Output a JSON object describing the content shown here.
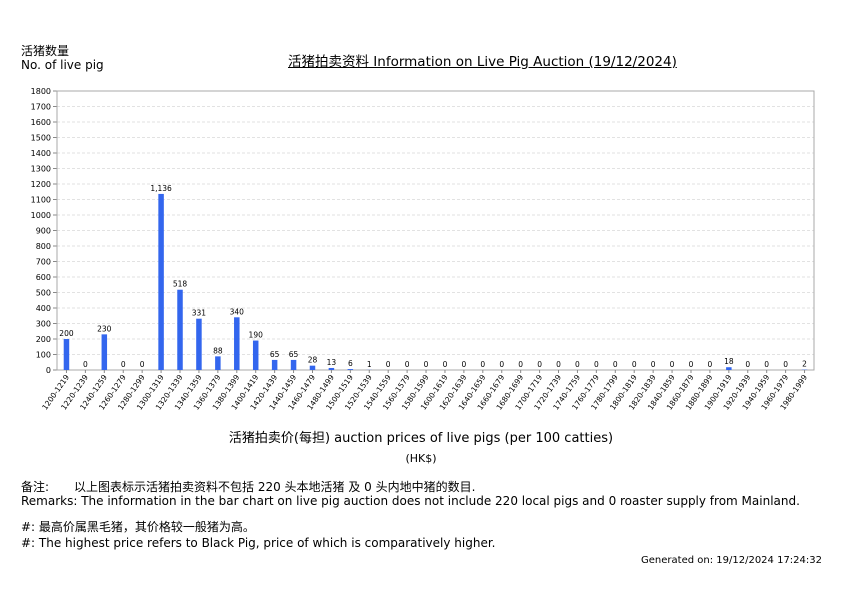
{
  "header": {
    "y_axis_label_cn": "活猪数量",
    "y_axis_label_en": "No. of live pig",
    "title": "活猪拍卖资料 Information on Live Pig Auction (19/12/2024)"
  },
  "chart_data": {
    "type": "bar",
    "title": "活猪拍卖资料 Information on Live Pig Auction (19/12/2024)",
    "xlabel": "活猪拍卖价(每担) auction prices of live pigs (per 100 catties)",
    "xunit": "(HK$)",
    "ylabel": "活猪数量 No. of live pig",
    "ylim": [
      0,
      1800
    ],
    "yticks": [
      0,
      100,
      200,
      300,
      400,
      500,
      600,
      700,
      800,
      900,
      1000,
      1100,
      1200,
      1300,
      1400,
      1500,
      1600,
      1700,
      1800
    ],
    "ytick_labels": [
      "0",
      "100",
      "200",
      "300",
      "400",
      "500",
      "600",
      "700",
      "800",
      "900",
      "1000",
      "1100",
      "1200",
      "1300",
      "1400",
      "1500",
      "1600",
      "1700",
      "1800"
    ],
    "grid": true,
    "bar_color": "#3366ee",
    "categories": [
      "1200-1219",
      "1220-1239",
      "1240-1259",
      "1260-1279",
      "1280-1299",
      "1300-1319",
      "1320-1339",
      "1340-1359",
      "1360-1379",
      "1380-1399",
      "1400-1419",
      "1420-1439",
      "1440-1459",
      "1460-1479",
      "1480-1499",
      "1500-1519",
      "1520-1539",
      "1540-1559",
      "1560-1579",
      "1580-1599",
      "1600-1619",
      "1620-1639",
      "1640-1659",
      "1660-1679",
      "1680-1699",
      "1700-1719",
      "1720-1739",
      "1740-1759",
      "1760-1779",
      "1780-1799",
      "1800-1819",
      "1820-1839",
      "1840-1859",
      "1860-1879",
      "1880-1899",
      "1900-1919",
      "1920-1939",
      "1940-1959",
      "1960-1979",
      "1980-1999"
    ],
    "values": [
      200,
      0,
      230,
      0,
      0,
      1136,
      518,
      331,
      88,
      340,
      190,
      65,
      65,
      28,
      13,
      6,
      1,
      0,
      0,
      0,
      0,
      0,
      0,
      0,
      0,
      0,
      0,
      0,
      0,
      0,
      0,
      0,
      0,
      0,
      0,
      18,
      0,
      0,
      0,
      2
    ],
    "value_labels": [
      "200",
      "0",
      "230",
      "0",
      "0",
      "1,136",
      "518",
      "331",
      "88",
      "340",
      "190",
      "65",
      "65",
      "28",
      "13",
      "6",
      "1",
      "0",
      "0",
      "0",
      "0",
      "0",
      "0",
      "0",
      "0",
      "0",
      "0",
      "0",
      "0",
      "0",
      "0",
      "0",
      "0",
      "0",
      "0",
      "18",
      "0",
      "0",
      "0",
      "2"
    ]
  },
  "footer": {
    "remark_cn_label": "备注:",
    "remark_cn_text": "以上图表标示活猪拍卖资料不包括 220 头本地活猪 及 0 头内地中猪的数目.",
    "remark_en": "Remarks: The information in the bar chart on live pig auction does not include 220 local pigs and 0 roaster supply from Mainland.",
    "hash_cn": "#: 最高价属黑毛猪，其价格较一般猪为高。",
    "hash_en": "#: The highest price refers to Black Pig, price of which is comparatively higher.",
    "generated": "Generated on: 19/12/2024 17:24:32"
  }
}
